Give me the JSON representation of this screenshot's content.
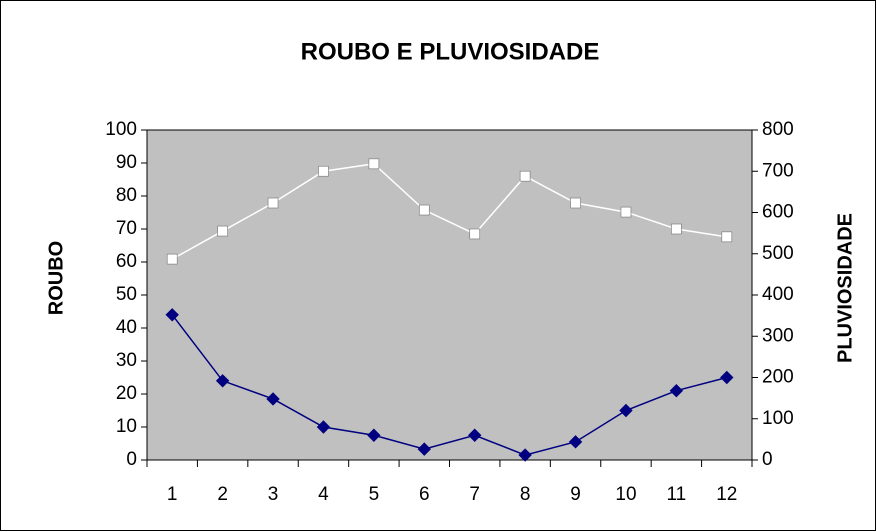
{
  "chart_data": {
    "type": "line",
    "title": "ROUBO E PLUVIOSIDADE",
    "y_label": "ROUBO",
    "y2_label": "PLUVIOSIDADE",
    "categories": [
      1,
      2,
      3,
      4,
      5,
      6,
      7,
      8,
      9,
      10,
      11,
      12
    ],
    "series": [
      {
        "color": "#000080",
        "marker": "diamond",
        "axis": "y",
        "values": [
          44,
          24,
          18.5,
          10,
          7.5,
          3.3,
          7.5,
          1.5,
          5.5,
          15,
          21,
          25
        ]
      },
      {
        "color": "#ffffff",
        "marker": "square",
        "axis": "y2",
        "values": [
          487,
          555,
          623,
          700,
          718,
          606,
          548,
          688,
          623,
          601,
          560,
          541
        ]
      }
    ],
    "ylim": [
      0,
      100
    ],
    "yticks": [
      0,
      10,
      20,
      30,
      40,
      50,
      60,
      70,
      80,
      90,
      100
    ],
    "y2lim": [
      0,
      800
    ],
    "y2ticks": [
      0,
      100,
      200,
      300,
      400,
      500,
      600,
      700,
      800
    ],
    "plot_background": "#c0c0c0"
  }
}
